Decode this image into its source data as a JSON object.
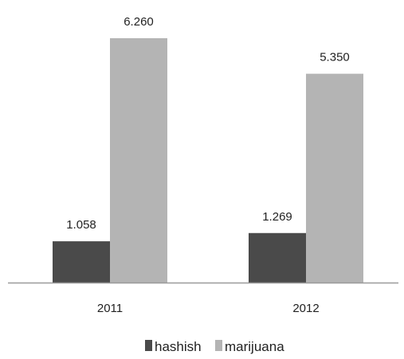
{
  "chart_data": {
    "type": "bar",
    "categories": [
      "2011",
      "2012"
    ],
    "series": [
      {
        "name": "hashish",
        "values": [
          1.058,
          1.269
        ],
        "labels": [
          "1.058",
          "1.269"
        ],
        "color": "#4a4a4a"
      },
      {
        "name": "marijuana",
        "values": [
          6.26,
          5.35
        ],
        "labels": [
          "6.260",
          "5.350"
        ],
        "color": "#b4b4b4"
      }
    ],
    "ylim": [
      0,
      6.26
    ],
    "grid": false,
    "legend_position": "bottom",
    "axis_color": "#9a9a9a"
  }
}
